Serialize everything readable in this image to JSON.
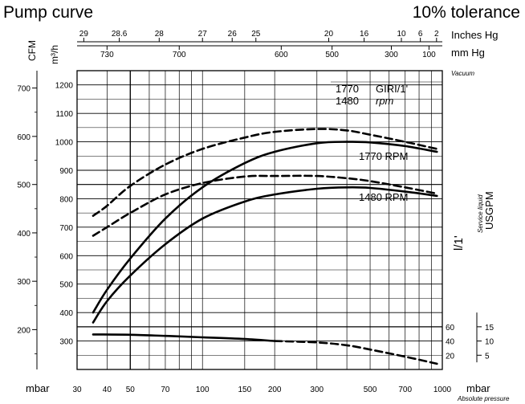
{
  "chart_data": {
    "type": "line",
    "title": "Pump curve",
    "subtitle": "10% tolerance",
    "xlabel": "mbar",
    "xlabel_right": "mbar",
    "xlabel_note": "Absolute pressure",
    "x_scale": "log",
    "xlim": [
      30,
      1000
    ],
    "x_ticks": [
      30,
      40,
      50,
      70,
      100,
      150,
      200,
      300,
      500,
      700,
      1000
    ],
    "x_vertical_lines": [
      40,
      50,
      60,
      70,
      80,
      90,
      100,
      150,
      200,
      300,
      400,
      500,
      600,
      700,
      800,
      900
    ],
    "top_axis_inches_hg": {
      "label": "Inches Hg",
      "ticks": [
        {
          "label": "29",
          "mbar": 32
        },
        {
          "label": "28.6",
          "mbar": 45
        },
        {
          "label": "28",
          "mbar": 66
        },
        {
          "label": "27",
          "mbar": 100
        },
        {
          "label": "26",
          "mbar": 133
        },
        {
          "label": "25",
          "mbar": 167
        },
        {
          "label": "20",
          "mbar": 336
        },
        {
          "label": "16",
          "mbar": 472
        },
        {
          "label": "10",
          "mbar": 675
        },
        {
          "label": "6",
          "mbar": 810
        },
        {
          "label": "2",
          "mbar": 946
        }
      ]
    },
    "top_axis_mmhg": {
      "label": "mm Hg",
      "ticks": [
        {
          "label": "730",
          "mbar": 40
        },
        {
          "label": "700",
          "mbar": 80
        },
        {
          "label": "600",
          "mbar": 213
        },
        {
          "label": "500",
          "mbar": 347
        },
        {
          "label": "300",
          "mbar": 613
        },
        {
          "label": "100",
          "mbar": 880
        }
      ]
    },
    "vacuum_label": "Vacuum",
    "y_left_m3h": {
      "label": "m³/h",
      "ticks": [
        300,
        400,
        500,
        600,
        700,
        800,
        900,
        1000,
        1100,
        1200
      ],
      "ylim": [
        200,
        1250
      ]
    },
    "y_left_cfm": {
      "label": "CFM",
      "ticks": [
        200,
        300,
        400,
        500,
        600,
        700
      ],
      "tick_positions_m3h": [
        340,
        510,
        680,
        850,
        1019,
        1189
      ]
    },
    "y_right_lmin": {
      "label": "l/1'",
      "ticks": [
        20,
        40,
        60
      ],
      "tick_positions_m3h": [
        250,
        300,
        350
      ]
    },
    "y_right_usgpm": {
      "label": "USGPM",
      "sublabel": "Service liquid",
      "ticks": [
        5,
        10,
        15
      ],
      "tick_positions_m3h": [
        250,
        300,
        350
      ]
    },
    "legend_box": {
      "line1_value": "1770",
      "line1_unit": "GIRI/1'",
      "line2_value": "1480",
      "line2_unit": "rpm"
    },
    "series": [
      {
        "name": "1770 RPM",
        "style": "solid",
        "x": [
          35,
          40,
          50,
          70,
          100,
          150,
          200,
          300,
          400,
          500,
          700,
          950
        ],
        "y": [
          400,
          480,
          590,
          730,
          840,
          925,
          965,
          995,
          1000,
          998,
          985,
          965
        ]
      },
      {
        "name": "1770 RPM +10%",
        "style": "dashed",
        "x": [
          35,
          40,
          50,
          70,
          100,
          150,
          200,
          300,
          400,
          500,
          700,
          950
        ],
        "y": [
          740,
          775,
          845,
          920,
          975,
          1015,
          1035,
          1045,
          1040,
          1025,
          1000,
          975
        ]
      },
      {
        "name": "1480 RPM",
        "style": "solid",
        "x": [
          35,
          40,
          50,
          70,
          100,
          150,
          200,
          300,
          400,
          500,
          700,
          950
        ],
        "y": [
          365,
          440,
          530,
          640,
          730,
          790,
          815,
          835,
          840,
          838,
          825,
          810
        ]
      },
      {
        "name": "1480 RPM +10%",
        "style": "dashed",
        "x": [
          35,
          40,
          50,
          70,
          100,
          150,
          200,
          300,
          400,
          500,
          700,
          950
        ],
        "y": [
          670,
          700,
          750,
          815,
          855,
          878,
          880,
          880,
          872,
          862,
          840,
          818
        ]
      },
      {
        "name": "Service liquid",
        "style": "solid",
        "x": [
          35,
          50,
          70,
          100,
          150,
          200
        ],
        "y": [
          323,
          322,
          318,
          313,
          307,
          300
        ]
      },
      {
        "name": "Service liquid +10%",
        "style": "dashed",
        "x": [
          200,
          300,
          400,
          500,
          700,
          950
        ],
        "y": [
          300,
          295,
          285,
          270,
          245,
          220
        ]
      }
    ],
    "curve_labels": {
      "rpm_1770": "1770  RPM",
      "rpm_1480": "1480  RPM"
    },
    "grid": true
  }
}
